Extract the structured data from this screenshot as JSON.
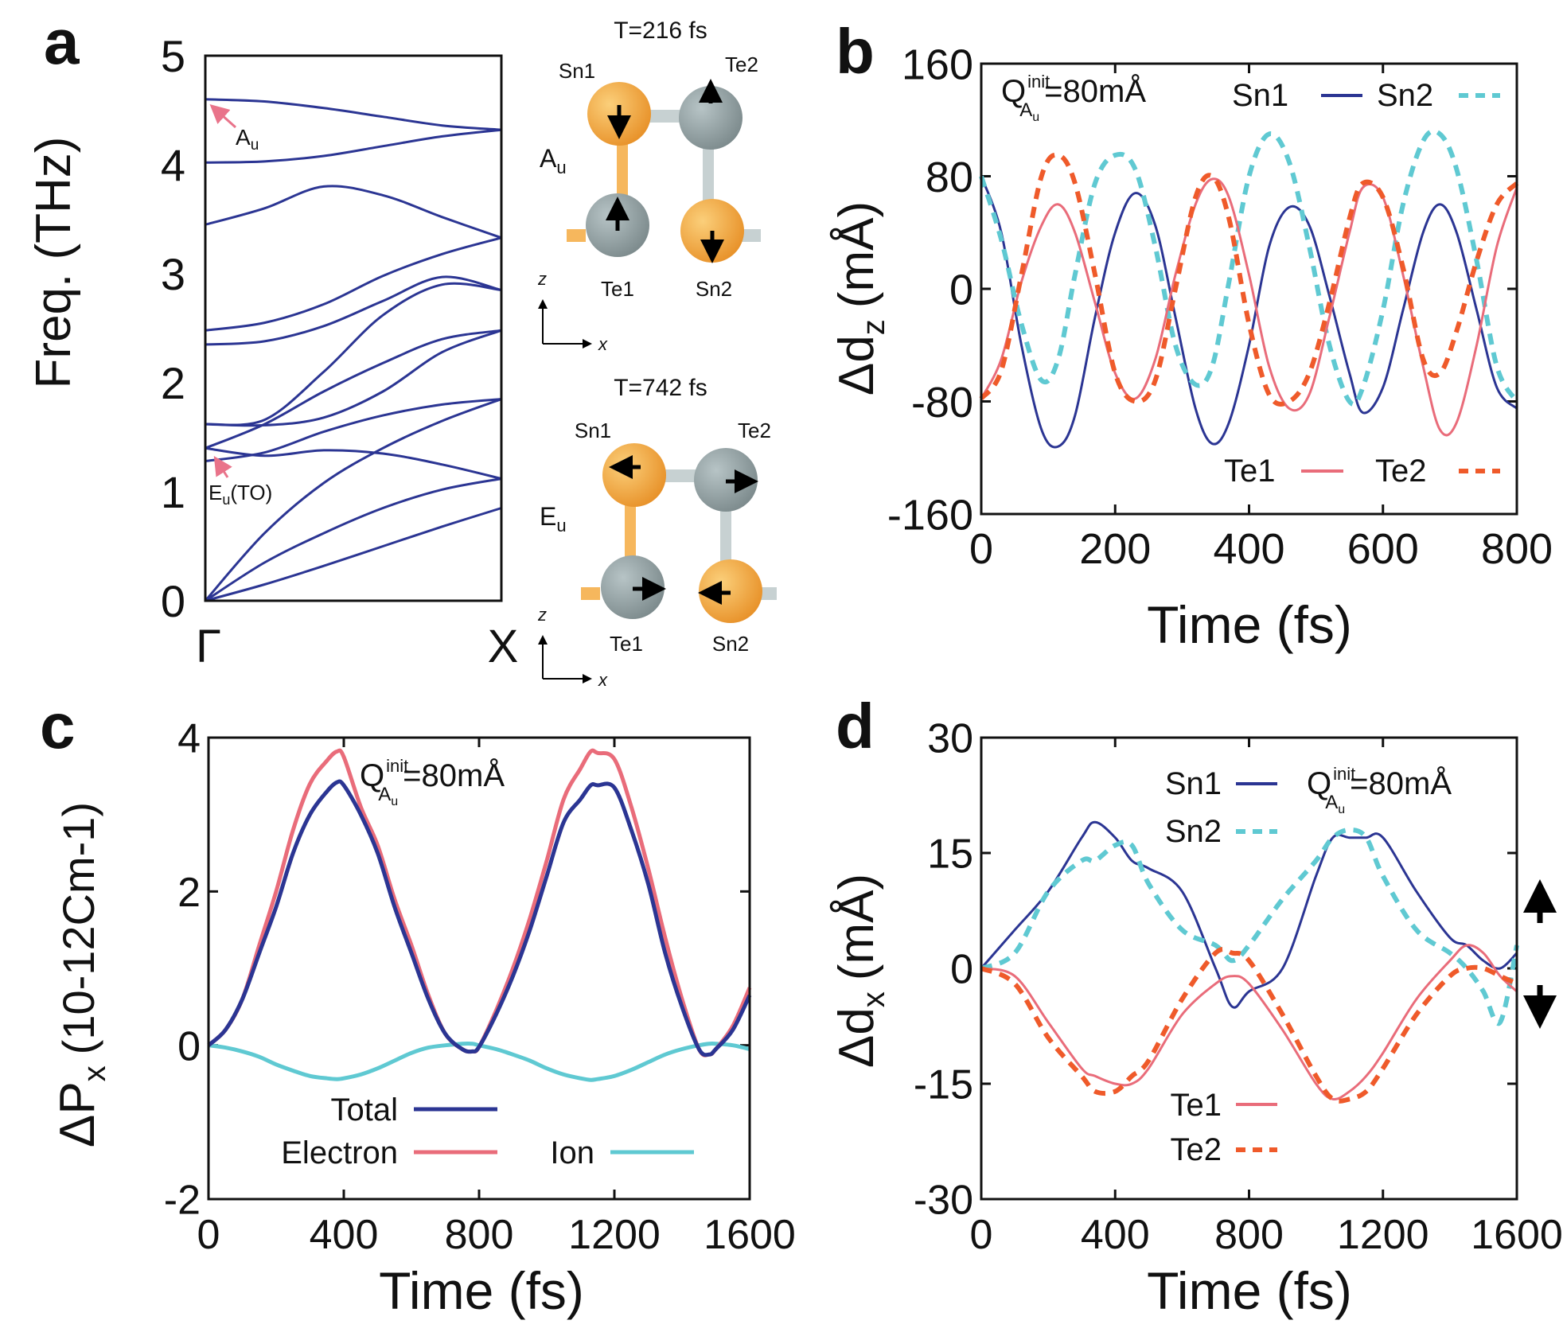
{
  "colors": {
    "navy": "#2b3593",
    "pink": "#e96c7a",
    "cyan": "#5fc9d2",
    "orange": "#ef5a2a",
    "arrow": "#e9738a",
    "sn": "#f4a43a",
    "te": "#8c9a9c"
  },
  "panel_a": {
    "letter": "a",
    "ylabel": "Freq. (THz)",
    "yticks": [
      "0",
      "1",
      "2",
      "3",
      "4",
      "5"
    ],
    "xticks": [
      "Γ",
      "X"
    ],
    "labels": {
      "au": "A",
      "au_sub": "u",
      "eu": "E",
      "eu_sub": "u",
      "eu_suffix": "(TO)"
    },
    "mode_top": {
      "title": "T=216 fs",
      "mode": "A",
      "mode_sub": "u",
      "atoms": [
        "Sn1",
        "Te2",
        "Te1",
        "Sn2"
      ],
      "axes": [
        "z",
        "x"
      ]
    },
    "mode_bottom": {
      "title": "T=742 fs",
      "mode": "E",
      "mode_sub": "u",
      "atoms": [
        "Sn1",
        "Te2",
        "Te1",
        "Sn2"
      ],
      "axes": [
        "z",
        "x"
      ]
    }
  },
  "panel_b": {
    "letter": "b",
    "annotation": {
      "q": "Q",
      "sup": "init",
      "sub": "A",
      "subsub": "u",
      "value": "=80mÅ"
    },
    "legend": [
      "Sn1",
      "Sn2",
      "Te1",
      "Te2"
    ]
  },
  "panel_c": {
    "letter": "c",
    "annotation": {
      "q": "Q",
      "sup": "init",
      "sub": "A",
      "subsub": "u",
      "value": "=80mÅ"
    },
    "legend": [
      "Total",
      "Electron",
      "Ion"
    ]
  },
  "panel_d": {
    "letter": "d",
    "annotation": {
      "q": "Q",
      "sup": "init",
      "sub": "A",
      "subsub": "u",
      "value": "=80mÅ"
    },
    "legend": [
      "Sn1",
      "Sn2",
      "Te1",
      "Te2"
    ]
  },
  "chart_data": [
    {
      "id": "a",
      "type": "line",
      "title": "",
      "xlabel": "",
      "ylabel": "Freq. (THz)",
      "ylim": [
        0,
        5
      ],
      "x_categories": [
        "Γ",
        "X"
      ],
      "x": [
        0,
        0.2,
        0.4,
        0.6,
        0.8,
        1.0
      ],
      "series": [
        {
          "values": [
            4.6,
            4.58,
            4.52,
            4.44,
            4.36,
            4.32
          ]
        },
        {
          "values": [
            4.02,
            4.03,
            4.08,
            4.17,
            4.26,
            4.32
          ]
        },
        {
          "values": [
            3.45,
            3.6,
            3.8,
            3.72,
            3.52,
            3.33
          ]
        },
        {
          "values": [
            2.48,
            2.55,
            2.72,
            2.98,
            3.18,
            3.33
          ]
        },
        {
          "values": [
            2.35,
            2.38,
            2.52,
            2.75,
            2.97,
            2.85
          ]
        },
        {
          "values": [
            1.62,
            1.66,
            2.1,
            2.62,
            2.9,
            2.85
          ]
        },
        {
          "values": [
            1.62,
            1.61,
            1.68,
            1.92,
            2.28,
            2.48
          ]
        },
        {
          "values": [
            1.4,
            1.62,
            1.92,
            2.18,
            2.4,
            2.48
          ]
        },
        {
          "values": [
            1.28,
            1.36,
            1.55,
            1.7,
            1.8,
            1.85
          ]
        },
        {
          "values": [
            1.4,
            1.33,
            1.38,
            1.35,
            1.25,
            1.12
          ]
        },
        {
          "values": [
            0.0,
            0.62,
            1.08,
            1.4,
            1.65,
            1.85
          ]
        },
        {
          "values": [
            0.0,
            0.35,
            0.62,
            0.85,
            1.02,
            1.12
          ]
        },
        {
          "values": [
            0.0,
            0.15,
            0.32,
            0.5,
            0.68,
            0.85
          ]
        }
      ]
    },
    {
      "id": "b",
      "type": "line",
      "title": "",
      "xlabel": "Time (fs)",
      "ylabel": "Δd",
      "ylabel_sub": "z",
      "ylabel_unit": "(mÅ)",
      "xlim": [
        0,
        800
      ],
      "ylim": [
        -160,
        160
      ],
      "xticks": [
        0,
        200,
        400,
        600,
        800
      ],
      "yticks": [
        -160,
        -80,
        0,
        80,
        160
      ],
      "x": [
        0,
        30,
        60,
        90,
        115,
        140,
        170,
        200,
        230,
        260,
        290,
        320,
        345,
        370,
        400,
        430,
        460,
        490,
        520,
        550,
        570,
        600,
        630,
        660,
        685,
        710,
        740,
        770,
        800
      ],
      "series": [
        {
          "name": "Sn1",
          "style": "solid",
          "values": [
            80,
            40,
            -40,
            -100,
            -112,
            -90,
            -20,
            40,
            68,
            45,
            -20,
            -85,
            -110,
            -95,
            -40,
            30,
            58,
            45,
            -5,
            -60,
            -88,
            -70,
            -15,
            40,
            60,
            40,
            -15,
            -70,
            -85
          ]
        },
        {
          "name": "Sn2",
          "style": "dashed",
          "values": [
            80,
            35,
            -25,
            -65,
            -50,
            10,
            75,
            95,
            85,
            30,
            -40,
            -68,
            -55,
            5,
            80,
            110,
            90,
            30,
            -40,
            -80,
            -70,
            -15,
            60,
            105,
            110,
            85,
            20,
            -55,
            -80
          ]
        },
        {
          "name": "Te1",
          "style": "solid",
          "values": [
            -78,
            -50,
            5,
            45,
            60,
            40,
            -10,
            -60,
            -78,
            -50,
            10,
            60,
            78,
            65,
            10,
            -55,
            -85,
            -75,
            -20,
            40,
            72,
            65,
            10,
            -55,
            -100,
            -95,
            -40,
            30,
            72
          ]
        },
        {
          "name": "Te2",
          "style": "dashed",
          "values": [
            -78,
            -58,
            10,
            80,
            95,
            75,
            10,
            -60,
            -80,
            -65,
            0,
            65,
            80,
            50,
            -25,
            -75,
            -80,
            -60,
            -10,
            50,
            75,
            65,
            15,
            -50,
            -60,
            -30,
            20,
            60,
            75
          ]
        }
      ]
    },
    {
      "id": "c",
      "type": "line",
      "title": "",
      "xlabel": "Time (fs)",
      "ylabel": "ΔP",
      "ylabel_sub": "x",
      "ylabel_unit": "(10-12Cm-1)",
      "xlim": [
        0,
        1600
      ],
      "ylim": [
        -2,
        4
      ],
      "xticks": [
        0,
        400,
        800,
        1200,
        1600
      ],
      "yticks": [
        -2,
        0,
        2,
        4
      ],
      "x": [
        0,
        50,
        100,
        150,
        200,
        250,
        300,
        350,
        380,
        400,
        450,
        500,
        550,
        600,
        650,
        700,
        750,
        780,
        800,
        850,
        900,
        950,
        1000,
        1050,
        1100,
        1130,
        1150,
        1200,
        1250,
        1300,
        1350,
        1400,
        1450,
        1480,
        1500,
        1550,
        1600
      ],
      "series": [
        {
          "name": "Total",
          "values": [
            0,
            0.2,
            0.6,
            1.2,
            1.8,
            2.5,
            3.0,
            3.3,
            3.42,
            3.38,
            3.0,
            2.5,
            1.8,
            1.2,
            0.6,
            0.15,
            -0.05,
            -0.08,
            -0.02,
            0.4,
            0.9,
            1.5,
            2.2,
            2.9,
            3.2,
            3.38,
            3.38,
            3.35,
            2.8,
            2.1,
            1.2,
            0.5,
            -0.05,
            -0.12,
            -0.05,
            0.2,
            0.65
          ]
        },
        {
          "name": "Electron",
          "values": [
            0,
            0.2,
            0.6,
            1.3,
            2.0,
            2.8,
            3.4,
            3.7,
            3.82,
            3.75,
            3.1,
            2.6,
            1.9,
            1.3,
            0.65,
            0.15,
            -0.05,
            -0.08,
            -0.02,
            0.45,
            1.0,
            1.65,
            2.4,
            3.2,
            3.6,
            3.82,
            3.8,
            3.72,
            3.1,
            2.3,
            1.4,
            0.6,
            -0.05,
            -0.12,
            -0.05,
            0.25,
            0.75
          ]
        },
        {
          "name": "Ion",
          "values": [
            0,
            -0.03,
            -0.08,
            -0.15,
            -0.25,
            -0.33,
            -0.4,
            -0.43,
            -0.44,
            -0.43,
            -0.38,
            -0.3,
            -0.2,
            -0.1,
            -0.03,
            0.0,
            0.02,
            0.02,
            0.0,
            -0.05,
            -0.12,
            -0.2,
            -0.3,
            -0.38,
            -0.43,
            -0.45,
            -0.44,
            -0.4,
            -0.32,
            -0.22,
            -0.12,
            -0.05,
            0.0,
            0.02,
            0.02,
            0.0,
            -0.05
          ]
        }
      ]
    },
    {
      "id": "d",
      "type": "line",
      "title": "",
      "xlabel": "Time (fs)",
      "ylabel": "Δd",
      "ylabel_sub": "x",
      "ylabel_unit": "(mÅ)",
      "xlim": [
        0,
        1600
      ],
      "ylim": [
        -30,
        30
      ],
      "xticks": [
        0,
        400,
        800,
        1200,
        1600
      ],
      "yticks": [
        -30,
        -15,
        0,
        15,
        30
      ],
      "x": [
        0,
        100,
        200,
        300,
        340,
        400,
        450,
        500,
        600,
        700,
        750,
        800,
        900,
        1000,
        1050,
        1100,
        1150,
        1200,
        1300,
        1400,
        1450,
        1500,
        1550,
        1600
      ],
      "series": [
        {
          "name": "Sn1",
          "style": "solid",
          "values": [
            0,
            5,
            10,
            17,
            19,
            17,
            14,
            13,
            10,
            0,
            -5,
            -3,
            0,
            12,
            17,
            17,
            17,
            17,
            10,
            4,
            3,
            1,
            0,
            2
          ]
        },
        {
          "name": "Sn2",
          "style": "dashed",
          "values": [
            0,
            2,
            10,
            14,
            14,
            16,
            16,
            11,
            5,
            3,
            1,
            3,
            9,
            14,
            17,
            18,
            17,
            12,
            5,
            2,
            0,
            -3,
            -7,
            3
          ]
        },
        {
          "name": "Te1",
          "style": "solid",
          "values": [
            0,
            -1,
            -7,
            -13,
            -14,
            -15,
            -15,
            -13,
            -6,
            -2,
            -1,
            -2,
            -8,
            -15,
            -17,
            -16,
            -14,
            -11,
            -4,
            1,
            3,
            2,
            -1,
            -3
          ]
        },
        {
          "name": "Te2",
          "style": "dashed",
          "values": [
            0,
            -2,
            -9,
            -14,
            -16,
            -16,
            -14,
            -12,
            -4,
            2,
            2,
            1,
            -6,
            -14,
            -17,
            -17,
            -16,
            -13,
            -6,
            -1,
            0,
            0,
            -1,
            -2
          ]
        }
      ]
    }
  ]
}
